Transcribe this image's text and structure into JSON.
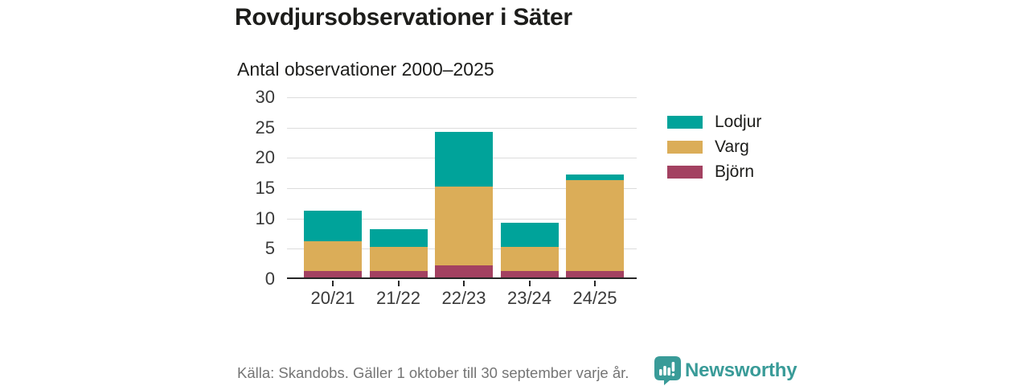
{
  "header": {
    "title": "Rovdjursobservationer i Säter",
    "subtitle": "Antal observationer 2000–2025"
  },
  "chart_data": {
    "type": "bar",
    "stacked": true,
    "title": "Rovdjursobservationer i Säter",
    "subtitle": "Antal observationer 2000–2025",
    "categories": [
      "20/21",
      "21/22",
      "22/23",
      "23/24",
      "24/25"
    ],
    "series": [
      {
        "name": "Lodjur",
        "color": "#00a39a",
        "values": [
          5,
          3,
          9,
          4,
          1
        ]
      },
      {
        "name": "Varg",
        "color": "#dbad58",
        "values": [
          5,
          4,
          13,
          4,
          15
        ]
      },
      {
        "name": "Björn",
        "color": "#a34161",
        "values": [
          1,
          1,
          2,
          1,
          1
        ]
      }
    ],
    "stack_order_bottom_to_top": [
      "Björn",
      "Varg",
      "Lodjur"
    ],
    "totals": [
      11,
      8,
      24,
      9,
      17
    ],
    "xlabel": "",
    "ylabel": "",
    "ylim": [
      0,
      30
    ],
    "yticks": [
      0,
      5,
      10,
      15,
      20,
      25,
      30
    ],
    "grid": true,
    "legend_position": "right"
  },
  "footer": {
    "source": "Källa: Skandobs. Gäller 1 oktober till 30 september varje år.",
    "brand": "Newsworthy"
  },
  "colors": {
    "lodjur_teal": "#00a39a",
    "varg_gold": "#dbad58",
    "bjorn_maroon": "#a34161",
    "brand_teal": "#399b98",
    "gridline": "#dcdcdc",
    "axis": "#262626",
    "text_dark": "#1d1d1b",
    "text_muted": "#757575"
  }
}
